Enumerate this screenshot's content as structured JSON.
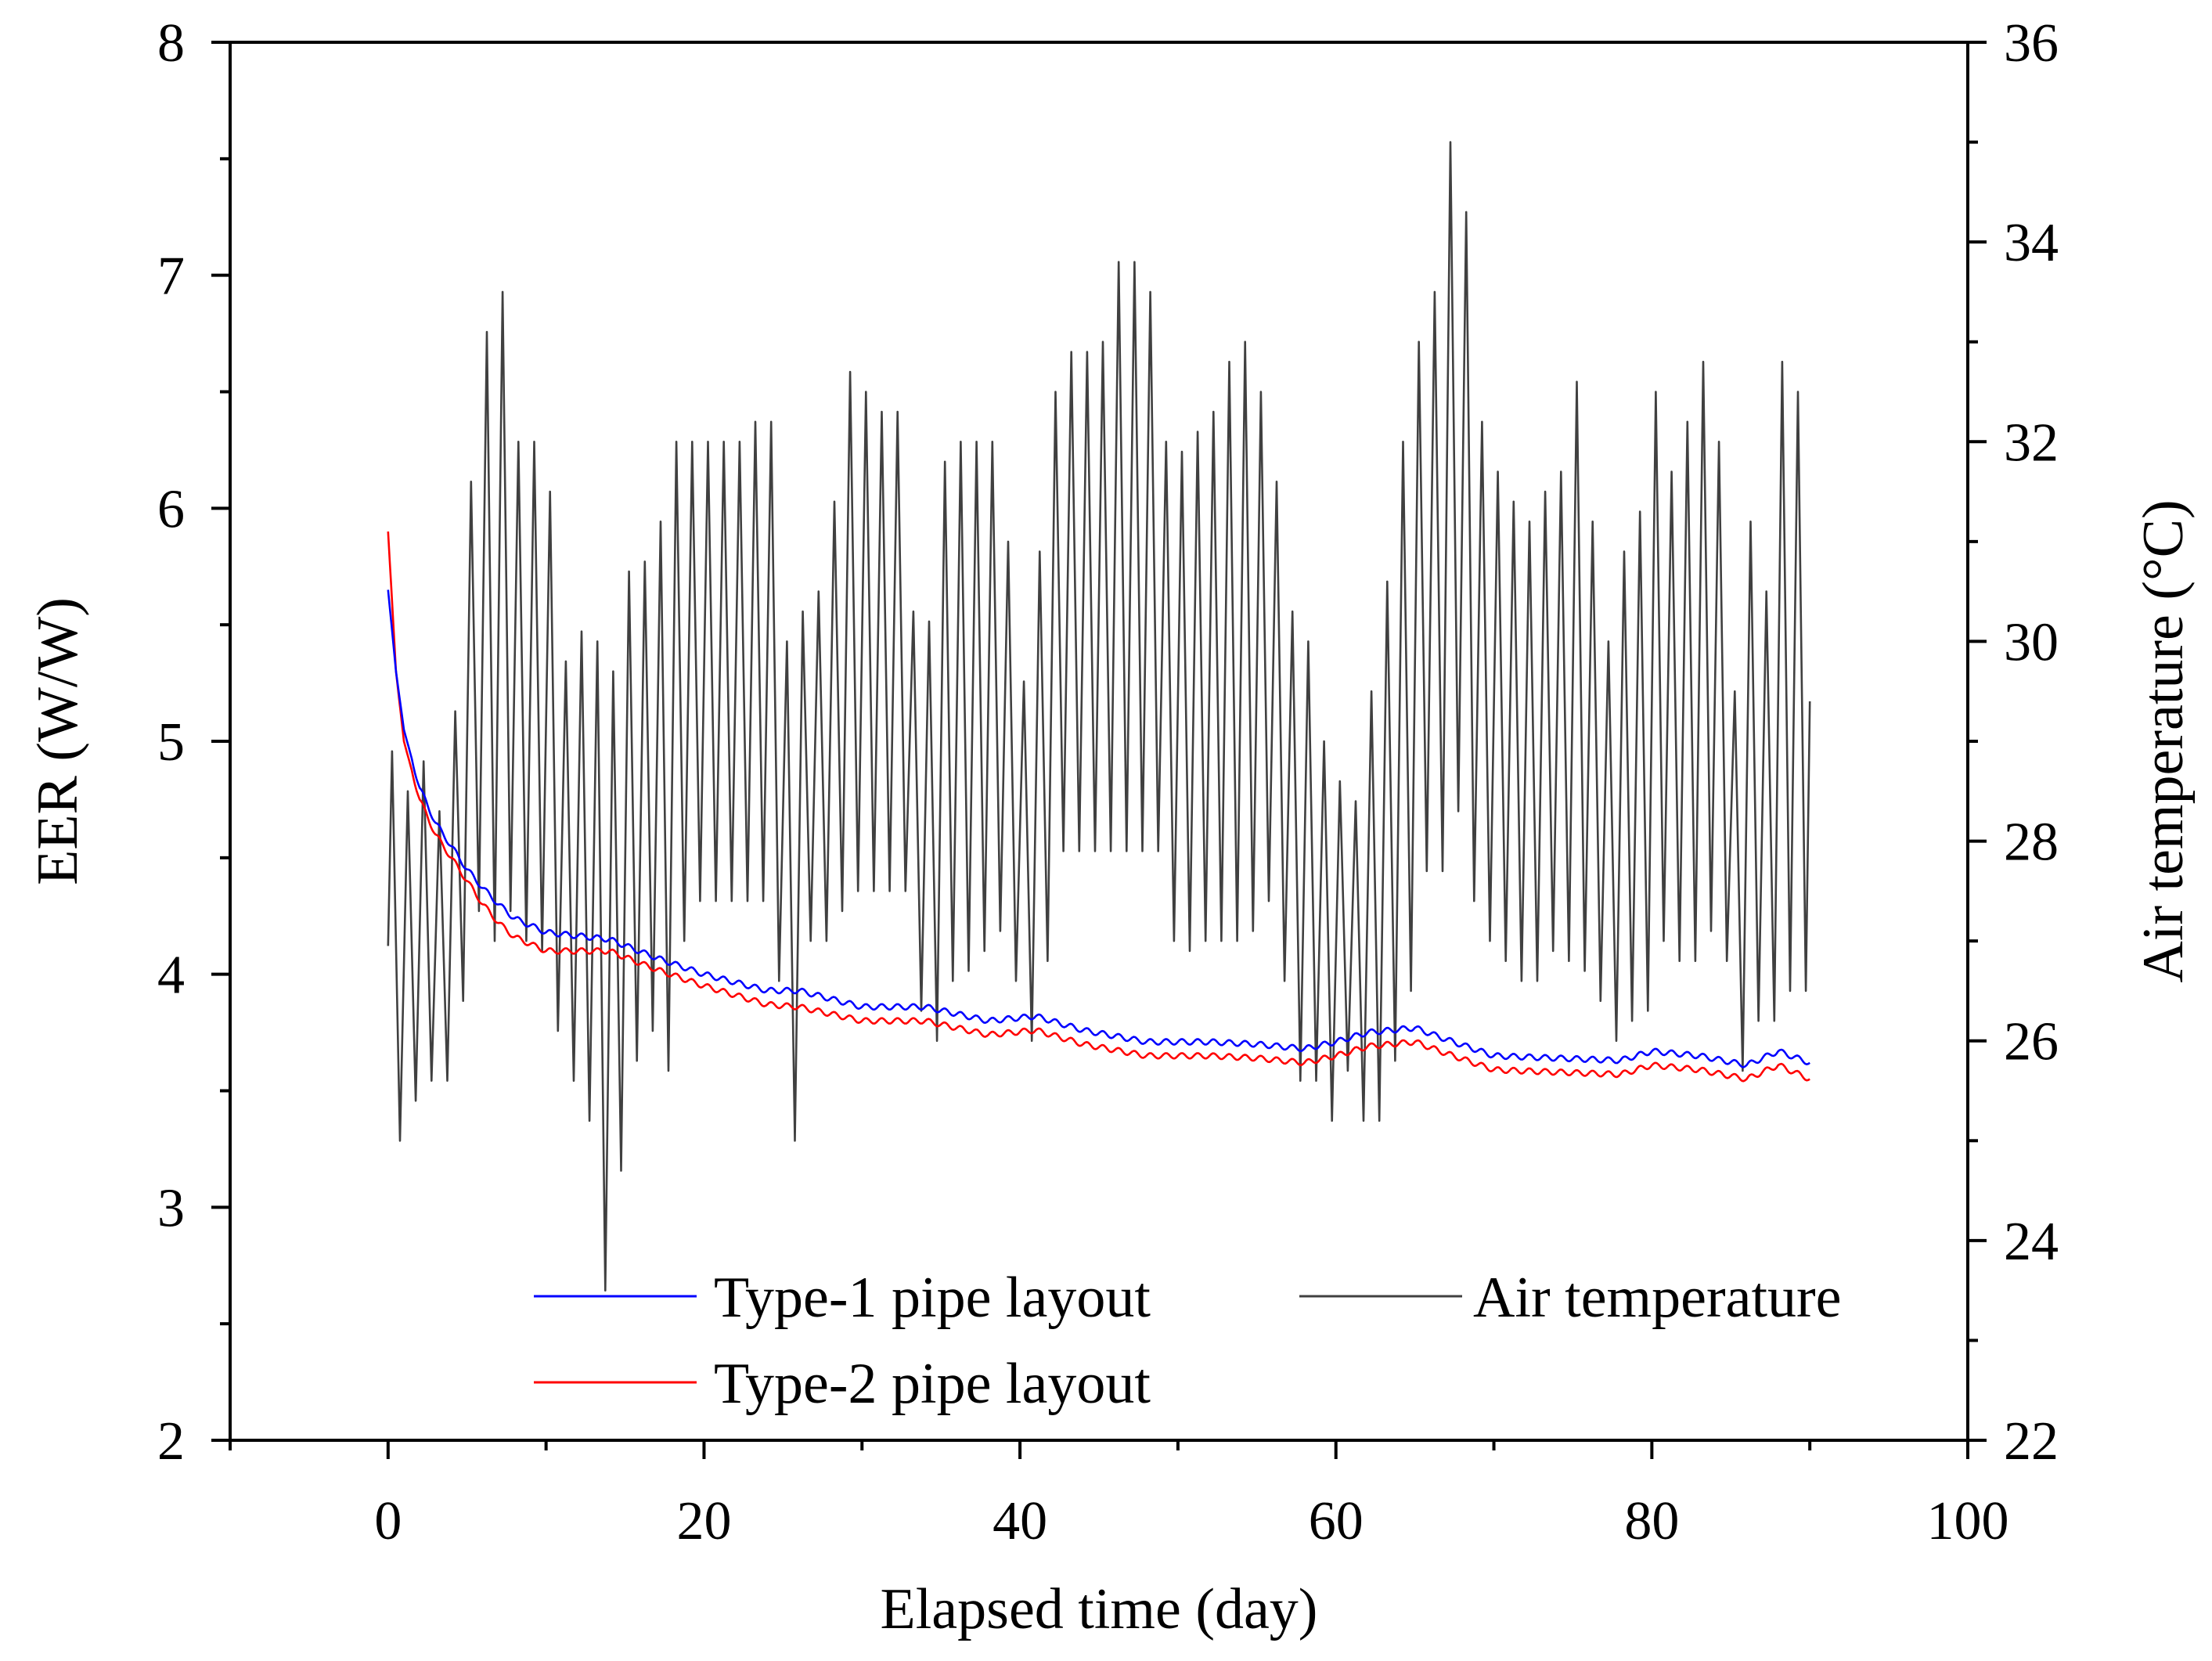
{
  "chart_data": {
    "type": "line",
    "x": {
      "label": "Elapsed time (day)",
      "range": [
        -10,
        100
      ],
      "ticks": [
        0,
        20,
        40,
        60,
        80,
        100
      ],
      "tick_labels": [
        "0",
        "20",
        "40",
        "60",
        "80",
        "100"
      ],
      "minor_step": 10
    },
    "y_left": {
      "label": "EER (W/W)",
      "range": [
        2,
        8
      ],
      "ticks": [
        2,
        3,
        4,
        5,
        6,
        7,
        8
      ],
      "tick_labels": [
        "2",
        "3",
        "4",
        "5",
        "6",
        "7",
        "8"
      ],
      "minor_step": 0.5
    },
    "y_right": {
      "label": "Air temperature (°C)",
      "range": [
        22,
        36
      ],
      "ticks": [
        22,
        24,
        26,
        28,
        30,
        32,
        34,
        36
      ],
      "tick_labels": [
        "22",
        "24",
        "26",
        "28",
        "30",
        "32",
        "34",
        "36"
      ],
      "minor_step": 1
    },
    "legend": {
      "position": "bottom",
      "entries": [
        "Type-1 pipe layout",
        "Air temperature",
        "Type-2 pipe layout"
      ]
    },
    "series": [
      {
        "name": "Type-1 pipe layout",
        "axis": "left",
        "color": "#0000ff",
        "trend": [
          [
            0,
            5.65
          ],
          [
            0.5,
            5.3
          ],
          [
            1,
            5.05
          ],
          [
            2,
            4.8
          ],
          [
            3,
            4.65
          ],
          [
            4,
            4.55
          ],
          [
            5,
            4.45
          ],
          [
            6,
            4.37
          ],
          [
            7,
            4.3
          ],
          [
            8,
            4.24
          ],
          [
            10,
            4.18
          ],
          [
            14,
            4.15
          ],
          [
            17,
            4.07
          ],
          [
            20,
            4.0
          ],
          [
            24,
            3.93
          ],
          [
            26,
            3.93
          ],
          [
            30,
            3.86
          ],
          [
            34,
            3.86
          ],
          [
            38,
            3.8
          ],
          [
            41,
            3.82
          ],
          [
            44,
            3.76
          ],
          [
            48,
            3.71
          ],
          [
            52,
            3.71
          ],
          [
            55,
            3.7
          ],
          [
            58,
            3.68
          ],
          [
            60,
            3.71
          ],
          [
            62,
            3.75
          ],
          [
            65,
            3.77
          ],
          [
            67,
            3.72
          ],
          [
            70,
            3.65
          ],
          [
            74,
            3.64
          ],
          [
            78,
            3.63
          ],
          [
            80,
            3.67
          ],
          [
            83,
            3.65
          ],
          [
            86,
            3.61
          ],
          [
            88,
            3.67
          ],
          [
            90,
            3.62
          ]
        ],
        "ripple_amplitude": 0.012
      },
      {
        "name": "Type-2 pipe layout",
        "axis": "left",
        "color": "#ff0000",
        "trend": [
          [
            0,
            5.9
          ],
          [
            0.5,
            5.3
          ],
          [
            1,
            5.0
          ],
          [
            2,
            4.75
          ],
          [
            3,
            4.6
          ],
          [
            4,
            4.5
          ],
          [
            5,
            4.4
          ],
          [
            6,
            4.3
          ],
          [
            7,
            4.22
          ],
          [
            8,
            4.16
          ],
          [
            10,
            4.1
          ],
          [
            14,
            4.1
          ],
          [
            17,
            4.02
          ],
          [
            20,
            3.95
          ],
          [
            24,
            3.87
          ],
          [
            26,
            3.86
          ],
          [
            30,
            3.8
          ],
          [
            34,
            3.8
          ],
          [
            38,
            3.74
          ],
          [
            41,
            3.76
          ],
          [
            44,
            3.7
          ],
          [
            48,
            3.65
          ],
          [
            52,
            3.65
          ],
          [
            55,
            3.64
          ],
          [
            58,
            3.62
          ],
          [
            60,
            3.65
          ],
          [
            62,
            3.69
          ],
          [
            65,
            3.71
          ],
          [
            67,
            3.66
          ],
          [
            70,
            3.59
          ],
          [
            74,
            3.58
          ],
          [
            78,
            3.57
          ],
          [
            80,
            3.61
          ],
          [
            83,
            3.59
          ],
          [
            86,
            3.55
          ],
          [
            88,
            3.61
          ],
          [
            90,
            3.55
          ]
        ],
        "ripple_amplitude": 0.012
      },
      {
        "name": "Air temperature",
        "axis": "right",
        "color": "#404040",
        "daily_peaks_troughs": [
          [
            28.9,
            25.0
          ],
          [
            28.5,
            25.4
          ],
          [
            28.8,
            25.6
          ],
          [
            28.3,
            25.6
          ],
          [
            29.3,
            26.4
          ],
          [
            31.6,
            27.3
          ],
          [
            33.1,
            27.0
          ],
          [
            33.5,
            27.3
          ],
          [
            32.0,
            27.0
          ],
          [
            32.0,
            26.9
          ],
          [
            31.5,
            26.1
          ],
          [
            29.8,
            25.6
          ],
          [
            30.1,
            25.2
          ],
          [
            30.0,
            23.5
          ],
          [
            29.7,
            24.7
          ],
          [
            30.7,
            25.8
          ],
          [
            30.8,
            26.1
          ],
          [
            31.2,
            25.7
          ],
          [
            32.0,
            27.0
          ],
          [
            32.0,
            27.4
          ],
          [
            32.0,
            27.4
          ],
          [
            32.0,
            27.4
          ],
          [
            32.0,
            27.4
          ],
          [
            32.2,
            27.4
          ],
          [
            32.2,
            26.6
          ],
          [
            30.0,
            25.0
          ],
          [
            30.3,
            27.0
          ],
          [
            30.5,
            27.0
          ],
          [
            31.4,
            27.3
          ],
          [
            32.7,
            27.5
          ],
          [
            32.5,
            27.5
          ],
          [
            32.3,
            27.5
          ],
          [
            32.3,
            27.5
          ],
          [
            30.3,
            26.3
          ],
          [
            30.2,
            26.0
          ],
          [
            31.8,
            26.6
          ],
          [
            32.0,
            26.7
          ],
          [
            32.0,
            26.9
          ],
          [
            32.0,
            27.1
          ],
          [
            31.0,
            26.6
          ],
          [
            29.6,
            26.0
          ],
          [
            30.9,
            26.8
          ],
          [
            32.5,
            27.9
          ],
          [
            32.9,
            27.9
          ],
          [
            32.9,
            27.9
          ],
          [
            33.0,
            27.9
          ],
          [
            33.8,
            27.9
          ],
          [
            33.8,
            27.9
          ],
          [
            33.5,
            27.9
          ],
          [
            32.0,
            27.0
          ],
          [
            31.9,
            26.9
          ],
          [
            32.1,
            27.0
          ],
          [
            32.3,
            27.0
          ],
          [
            32.8,
            27.0
          ],
          [
            33.0,
            27.1
          ],
          [
            32.5,
            27.4
          ],
          [
            31.6,
            26.6
          ],
          [
            30.3,
            25.6
          ],
          [
            30.0,
            25.6
          ],
          [
            29.0,
            25.2
          ],
          [
            28.6,
            25.7
          ],
          [
            28.4,
            25.2
          ],
          [
            29.5,
            25.2
          ],
          [
            30.6,
            25.8
          ],
          [
            32.0,
            26.5
          ],
          [
            33.0,
            27.7
          ],
          [
            33.5,
            27.7
          ],
          [
            35.0,
            28.3
          ],
          [
            34.3,
            27.4
          ],
          [
            32.2,
            27.0
          ],
          [
            31.7,
            26.8
          ],
          [
            31.4,
            26.6
          ],
          [
            31.2,
            26.6
          ],
          [
            31.5,
            26.9
          ],
          [
            31.7,
            26.8
          ],
          [
            32.6,
            26.7
          ],
          [
            31.2,
            26.4
          ],
          [
            30.0,
            26.0
          ],
          [
            30.9,
            26.2
          ],
          [
            31.3,
            26.3
          ],
          [
            32.5,
            27.0
          ],
          [
            31.7,
            26.8
          ],
          [
            32.2,
            26.8
          ],
          [
            32.8,
            27.1
          ],
          [
            32.0,
            26.8
          ],
          [
            29.5,
            25.7
          ],
          [
            31.2,
            26.2
          ],
          [
            30.5,
            26.2
          ],
          [
            32.8,
            26.5
          ],
          [
            32.5,
            26.5
          ]
        ],
        "end_value": 29.4
      }
    ]
  }
}
